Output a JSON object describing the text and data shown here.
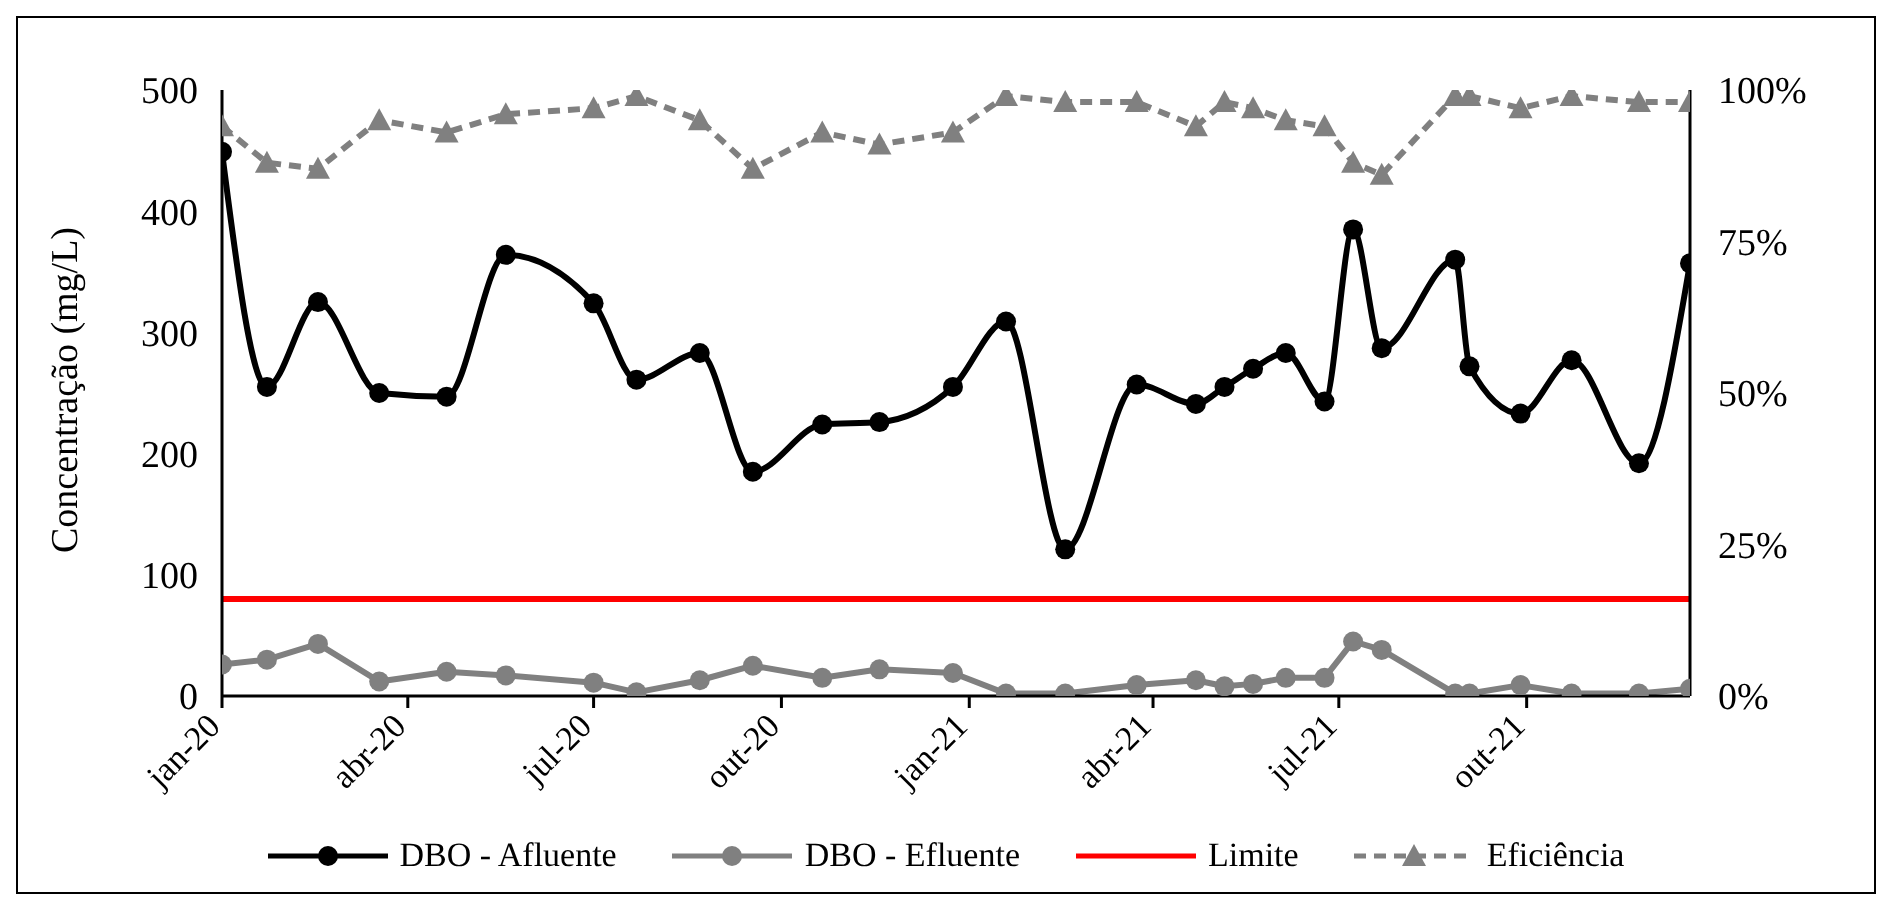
{
  "chart_data": {
    "type": "line",
    "ylabel": "Concentração (mg/L)",
    "x": [
      "2020-01-01",
      "2020-01-23",
      "2020-02-17",
      "2020-03-18",
      "2020-04-20",
      "2020-05-19",
      "2020-07-01",
      "2020-07-22",
      "2020-08-22",
      "2020-09-17",
      "2020-10-21",
      "2020-11-18",
      "2020-12-24",
      "2021-01-19",
      "2021-02-17",
      "2021-03-24",
      "2021-04-22",
      "2021-05-06",
      "2021-05-20",
      "2021-06-05",
      "2021-06-24",
      "2021-07-08",
      "2021-07-22",
      "2021-08-27",
      "2021-09-03",
      "2021-09-28",
      "2021-10-23",
      "2021-11-25",
      "2021-12-20"
    ],
    "series": [
      {
        "name": "DBO - Afluente",
        "color": "#000000",
        "marker": "circle",
        "line_style": "solid",
        "values": [
          449,
          255,
          325,
          250,
          247,
          364,
          324,
          261,
          283,
          185,
          224,
          226,
          255,
          309,
          121,
          257,
          241,
          255,
          270,
          283,
          243,
          385,
          287,
          360,
          272,
          233,
          277,
          192,
          357
        ]
      },
      {
        "name": "DBO - Efluente",
        "color": "#808080",
        "marker": "circle",
        "line_style": "solid",
        "values": [
          26,
          30,
          43,
          12,
          20,
          17,
          11,
          3,
          13,
          25,
          15,
          22,
          19,
          2,
          2,
          9,
          13,
          8,
          10,
          15,
          15,
          45,
          38,
          2,
          2,
          9,
          2,
          2,
          6
        ]
      },
      {
        "name": "Limite",
        "color": "#ff0000",
        "marker": "none",
        "line_style": "solid",
        "values": [
          80,
          80,
          80,
          80,
          80,
          80,
          80,
          80,
          80,
          80,
          80,
          80,
          80,
          80,
          80,
          80,
          80,
          80,
          80,
          80,
          80,
          80,
          80,
          80,
          80,
          80,
          80,
          80,
          80
        ]
      },
      {
        "name": "Eficiência",
        "color": "#808080",
        "marker": "triangle",
        "line_style": "dashed",
        "axis": "y2",
        "values": [
          94,
          88,
          87,
          95,
          93,
          96,
          97,
          99,
          95,
          87,
          93,
          91,
          93,
          99,
          98,
          98,
          94,
          98,
          97,
          95,
          94,
          88,
          86,
          99,
          99,
          97,
          99,
          98,
          98
        ]
      }
    ],
    "xlim": [
      "2020-01-01",
      "2021-12-20"
    ],
    "xticks": [
      {
        "value": "2020-01-01",
        "label": "jan-20"
      },
      {
        "value": "2020-04-01",
        "label": "abr-20"
      },
      {
        "value": "2020-07-01",
        "label": "jul-20"
      },
      {
        "value": "2020-10-01",
        "label": "out-20"
      },
      {
        "value": "2021-01-01",
        "label": "jan-21"
      },
      {
        "value": "2021-04-01",
        "label": "abr-21"
      },
      {
        "value": "2021-07-01",
        "label": "jul-21"
      },
      {
        "value": "2021-10-01",
        "label": "out-21"
      }
    ],
    "ylim": [
      0,
      500
    ],
    "yticks": [
      0,
      100,
      200,
      300,
      400,
      500
    ],
    "y2lim": [
      0,
      100
    ],
    "y2ticks": [
      {
        "value": 0,
        "label": "0%"
      },
      {
        "value": 25,
        "label": "25%"
      },
      {
        "value": 50,
        "label": "50%"
      },
      {
        "value": 75,
        "label": "75%"
      },
      {
        "value": 100,
        "label": "100%"
      }
    ],
    "grid": false,
    "legend": "bottom"
  }
}
